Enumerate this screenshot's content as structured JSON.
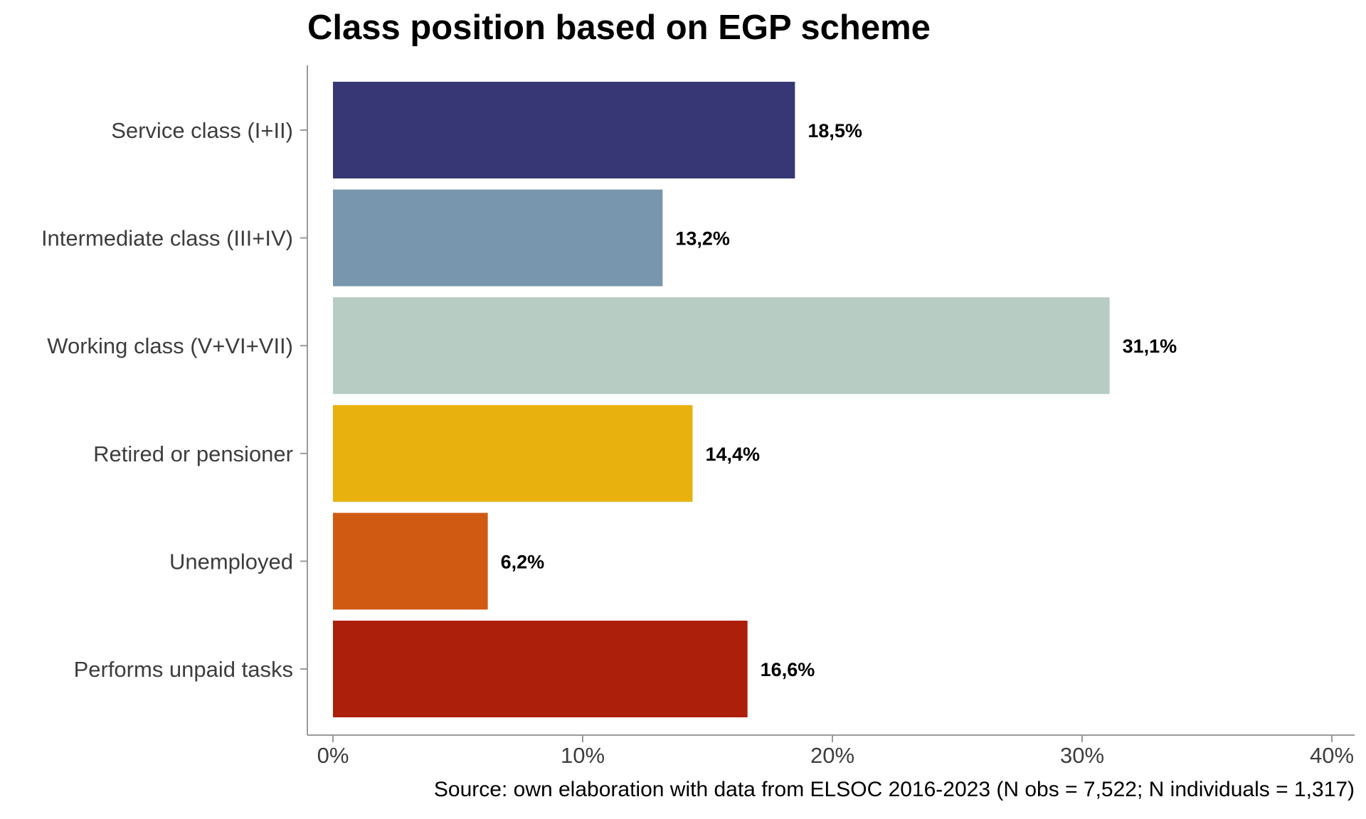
{
  "chart_data": {
    "type": "bar",
    "orientation": "horizontal",
    "title": "Class position based on EGP scheme",
    "caption": "Source: own elaboration with data from ELSOC 2016-2023 (N obs = 7,522; N individuals = 1,317)",
    "categories": [
      "Service class (I+II)",
      "Intermediate class (III+IV)",
      "Working class (V+VI+VII)",
      "Retired or pensioner",
      "Unemployed",
      "Performs unpaid tasks"
    ],
    "values": [
      18.5,
      13.2,
      31.1,
      14.4,
      6.2,
      16.6
    ],
    "value_labels": [
      "18,5%",
      "13,2%",
      "31,1%",
      "14,4%",
      "6,2%",
      "16,6%"
    ],
    "colors": [
      "#373775",
      "#7896ad",
      "#b7ccc3",
      "#e8b10e",
      "#d15a12",
      "#ab1f0b"
    ],
    "x_ticks": [
      0,
      10,
      20,
      30,
      40
    ],
    "x_tick_labels": [
      "0%",
      "10%",
      "20%",
      "30%",
      "40%"
    ],
    "xlim": [
      0,
      40
    ],
    "grid": false,
    "legend": "none"
  }
}
